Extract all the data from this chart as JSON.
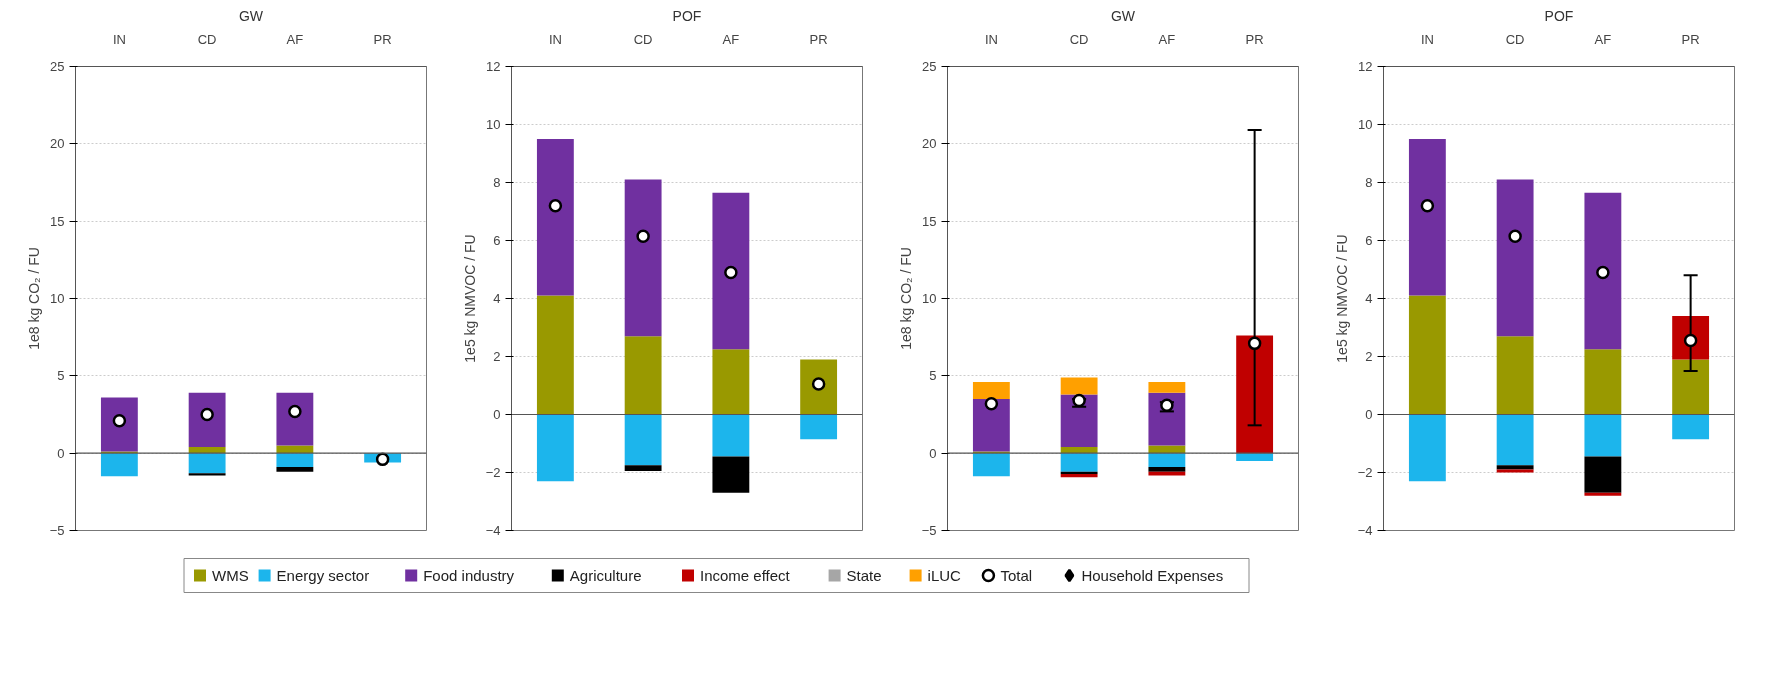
{
  "chart_data": [
    {
      "type": "bar",
      "stacked": true,
      "title": "GW",
      "ylabel": "1e8 kg CO₂ / FU",
      "categories": [
        "IN",
        "CD",
        "AF",
        "PR"
      ],
      "ylim": [
        -5,
        25
      ],
      "yticks": [
        -5,
        0,
        5,
        10,
        15,
        20,
        25
      ],
      "grid": "y",
      "legend": "bottom",
      "series": [
        {
          "name": "WMS",
          "color": "#999900",
          "values": [
            0.1,
            0.4,
            0.5,
            null
          ]
        },
        {
          "name": "Energy sector",
          "color": "#1cb5ec",
          "values": [
            -1.5,
            -1.3,
            -0.9,
            -0.6
          ]
        },
        {
          "name": "Food industry",
          "color": "#7030a0",
          "values": [
            3.5,
            3.5,
            3.4,
            null
          ]
        },
        {
          "name": "Agriculture",
          "color": "#000000",
          "values": [
            null,
            -0.15,
            -0.3,
            null
          ]
        },
        {
          "name": "Total",
          "type": "scatter",
          "marker": "circle",
          "color": "#ffffff",
          "values": [
            2.1,
            2.5,
            2.7,
            -0.4
          ]
        }
      ]
    },
    {
      "type": "bar",
      "stacked": true,
      "title": "POF",
      "ylabel": "1e5 kg NMVOC / FU",
      "categories": [
        "IN",
        "CD",
        "AF",
        "PR"
      ],
      "ylim": [
        -4,
        12
      ],
      "yticks": [
        -4,
        -2,
        0,
        2,
        4,
        6,
        8,
        10,
        12
      ],
      "grid": "y",
      "legend": "bottom",
      "series": [
        {
          "name": "WMS",
          "color": "#999900",
          "values": [
            4.1,
            2.7,
            2.25,
            1.9
          ]
        },
        {
          "name": "Energy sector",
          "color": "#1cb5ec",
          "values": [
            -2.3,
            -1.75,
            -1.45,
            -0.85
          ]
        },
        {
          "name": "Food industry",
          "color": "#7030a0",
          "values": [
            5.4,
            5.4,
            5.4,
            null
          ]
        },
        {
          "name": "Agriculture",
          "color": "#000000",
          "values": [
            null,
            -0.2,
            -1.25,
            null
          ]
        },
        {
          "name": "Total",
          "type": "scatter",
          "marker": "circle",
          "color": "#ffffff",
          "values": [
            7.2,
            6.15,
            4.9,
            1.05
          ]
        }
      ]
    },
    {
      "type": "bar",
      "stacked": true,
      "title": "GW",
      "ylabel": "1e8 kg CO₂ / FU",
      "categories": [
        "IN",
        "CD",
        "AF",
        "PR"
      ],
      "ylim": [
        -5,
        25
      ],
      "yticks": [
        -5,
        0,
        5,
        10,
        15,
        20,
        25
      ],
      "grid": "y",
      "legend": "bottom",
      "series": [
        {
          "name": "WMS",
          "color": "#999900",
          "values": [
            0.1,
            0.4,
            0.5,
            null
          ]
        },
        {
          "name": "Energy sector",
          "color": "#1cb5ec",
          "values": [
            -1.5,
            -1.2,
            -0.9,
            -0.5
          ]
        },
        {
          "name": "Food industry",
          "color": "#7030a0",
          "values": [
            3.4,
            3.4,
            3.4,
            null
          ]
        },
        {
          "name": "Agriculture",
          "color": "#000000",
          "values": [
            null,
            -0.15,
            -0.3,
            null
          ]
        },
        {
          "name": "Income effect",
          "color": "#c00000",
          "values": [
            null,
            -0.2,
            -0.25,
            7.6
          ]
        },
        {
          "name": "State",
          "color": "#a6a6a6",
          "values": [
            null,
            null,
            null,
            null
          ]
        },
        {
          "name": "iLUC",
          "color": "#ffa000",
          "values": [
            1.1,
            1.1,
            0.7,
            null
          ]
        },
        {
          "name": "Total",
          "type": "scatter",
          "marker": "circle",
          "color": "#ffffff",
          "values": [
            3.2,
            3.4,
            3.1,
            7.1
          ],
          "errors": [
            null,
            [
              3.0,
              3.5
            ],
            [
              2.7,
              3.3
            ],
            [
              1.8,
              20.9
            ]
          ]
        },
        {
          "name": "Household Expenses",
          "type": "scatter",
          "marker": "diamond",
          "color": "#000000",
          "values": [
            null,
            null,
            null,
            null
          ]
        }
      ]
    },
    {
      "type": "bar",
      "stacked": true,
      "title": "POF",
      "ylabel": "1e5 kg NMVOC / FU",
      "categories": [
        "IN",
        "CD",
        "AF",
        "PR"
      ],
      "ylim": [
        -4,
        12
      ],
      "yticks": [
        -4,
        -2,
        0,
        2,
        4,
        6,
        8,
        10,
        12
      ],
      "grid": "y",
      "legend": "bottom",
      "series": [
        {
          "name": "WMS",
          "color": "#999900",
          "values": [
            4.1,
            2.7,
            2.25,
            1.9
          ]
        },
        {
          "name": "Energy sector",
          "color": "#1cb5ec",
          "values": [
            -2.3,
            -1.75,
            -1.45,
            -0.85
          ]
        },
        {
          "name": "Food industry",
          "color": "#7030a0",
          "values": [
            5.4,
            5.4,
            5.4,
            null
          ]
        },
        {
          "name": "Agriculture",
          "color": "#000000",
          "values": [
            null,
            -0.15,
            -1.25,
            null
          ]
        },
        {
          "name": "Income effect",
          "color": "#c00000",
          "values": [
            null,
            -0.1,
            -0.1,
            1.5
          ]
        },
        {
          "name": "Total",
          "type": "scatter",
          "marker": "circle",
          "color": "#ffffff",
          "values": [
            7.2,
            6.15,
            4.9,
            2.55
          ],
          "errors": [
            null,
            null,
            null,
            [
              1.5,
              4.8
            ]
          ]
        }
      ]
    }
  ]
}
